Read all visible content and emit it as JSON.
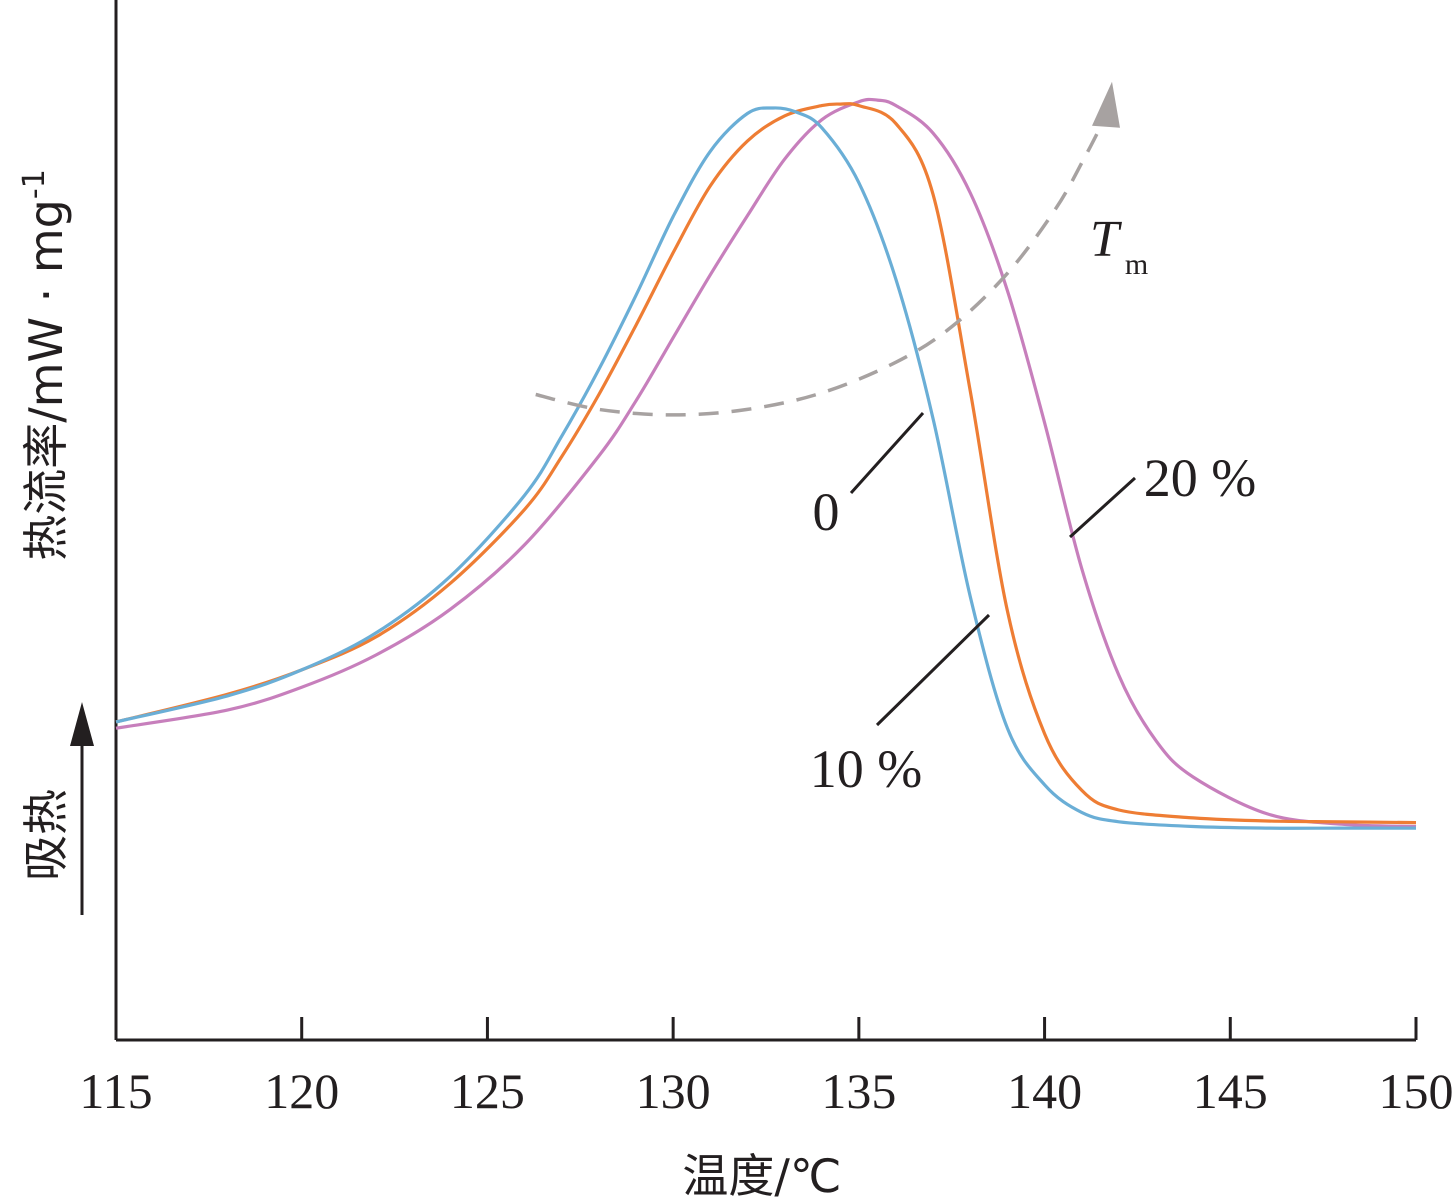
{
  "chart_data": {
    "type": "line",
    "xlabel": "温度/℃",
    "ylabel": "热流率/mW · mg",
    "ylabel_superscript": "-1",
    "xlim": [
      115,
      150
    ],
    "ylim": [
      0,
      1
    ],
    "xticks": [
      115,
      120,
      125,
      130,
      135,
      140,
      145,
      150
    ],
    "xtick_labels": [
      "115",
      "120",
      "125",
      "130",
      "135",
      "140",
      "145",
      "150"
    ],
    "endotherm_label": "吸热",
    "grid": false,
    "series": [
      {
        "name": "0",
        "color": "#6aaed6",
        "x": [
          115,
          118,
          120,
          122,
          124,
          126,
          127,
          128,
          129,
          130,
          131,
          132,
          132.7,
          133.3,
          134,
          135,
          136,
          137,
          138,
          139,
          140,
          141,
          142,
          144,
          146,
          148,
          150
        ],
        "y": [
          0.22,
          0.253,
          0.286,
          0.333,
          0.405,
          0.508,
          0.583,
          0.668,
          0.762,
          0.862,
          0.945,
          0.993,
          1.0,
          0.995,
          0.975,
          0.905,
          0.782,
          0.605,
          0.379,
          0.212,
          0.14,
          0.105,
          0.093,
          0.087,
          0.085,
          0.085,
          0.085
        ]
      },
      {
        "name": "10 %",
        "color": "#ee7d34",
        "x": [
          115,
          118,
          120,
          122,
          124,
          126,
          127,
          128,
          129,
          130,
          131,
          132,
          133,
          134,
          134.5,
          135,
          136,
          137,
          138,
          139,
          140,
          141,
          142,
          144,
          146,
          148,
          150
        ],
        "y": [
          0.22,
          0.255,
          0.286,
          0.328,
          0.396,
          0.49,
          0.557,
          0.636,
          0.724,
          0.816,
          0.901,
          0.958,
          0.99,
          1.003,
          1.005,
          1.003,
          0.98,
          0.89,
          0.64,
          0.361,
          0.205,
          0.133,
          0.108,
          0.098,
          0.094,
          0.093,
          0.092
        ]
      },
      {
        "name": "20 %",
        "color": "#c77fbc",
        "x": [
          115,
          118,
          120,
          122,
          124,
          126,
          128,
          129,
          130,
          131,
          132,
          133,
          134,
          135,
          135.5,
          136,
          137,
          138,
          139,
          140,
          141,
          142,
          143,
          144,
          146,
          148,
          150
        ],
        "y": [
          0.212,
          0.235,
          0.264,
          0.305,
          0.363,
          0.445,
          0.558,
          0.628,
          0.708,
          0.788,
          0.863,
          0.935,
          0.985,
          1.008,
          1.01,
          1.003,
          0.968,
          0.892,
          0.768,
          0.6,
          0.415,
          0.279,
          0.196,
          0.15,
          0.103,
          0.09,
          0.087
        ]
      }
    ],
    "tm_arrow": {
      "label": "T",
      "subscript": "m",
      "color": "#a7a2a1",
      "x": [
        126.3,
        128,
        130,
        132,
        134,
        136,
        137.5,
        139,
        140.3,
        141.1,
        141.6
      ],
      "y": [
        0.636,
        0.617,
        0.61,
        0.617,
        0.638,
        0.677,
        0.722,
        0.79,
        0.872,
        0.939,
        0.985
      ]
    },
    "labels": [
      {
        "text": "0",
        "series": "0"
      },
      {
        "text": "10 %",
        "series": "10 %"
      },
      {
        "text": "20 %",
        "series": "20 %"
      }
    ]
  }
}
